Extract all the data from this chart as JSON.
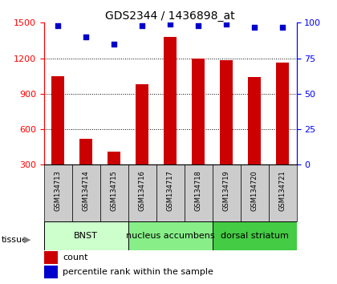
{
  "title": "GDS2344 / 1436898_at",
  "samples": [
    "GSM134713",
    "GSM134714",
    "GSM134715",
    "GSM134716",
    "GSM134717",
    "GSM134718",
    "GSM134719",
    "GSM134720",
    "GSM134721"
  ],
  "counts": [
    1050,
    520,
    410,
    980,
    1380,
    1195,
    1185,
    1040,
    1165
  ],
  "percentile": [
    98,
    90,
    85,
    98,
    99,
    98,
    99,
    97,
    97
  ],
  "ylim_left": [
    300,
    1500
  ],
  "ylim_right": [
    0,
    100
  ],
  "yticks_left": [
    300,
    600,
    900,
    1200,
    1500
  ],
  "yticks_right": [
    0,
    25,
    50,
    75,
    100
  ],
  "bar_color": "#cc0000",
  "dot_color": "#0000cc",
  "tissue_groups": [
    {
      "label": "BNST",
      "start": 0,
      "end": 3,
      "color": "#ccffcc"
    },
    {
      "label": "nucleus accumbens",
      "start": 3,
      "end": 6,
      "color": "#88ee88"
    },
    {
      "label": "dorsal striatum",
      "start": 6,
      "end": 9,
      "color": "#44cc44"
    }
  ],
  "tissue_label": "tissue",
  "legend_count_label": "count",
  "legend_pct_label": "percentile rank within the sample",
  "bar_width": 0.45,
  "title_fontsize": 10,
  "tick_fontsize": 8,
  "sample_fontsize": 6,
  "tissue_fontsize": 8,
  "legend_fontsize": 8
}
